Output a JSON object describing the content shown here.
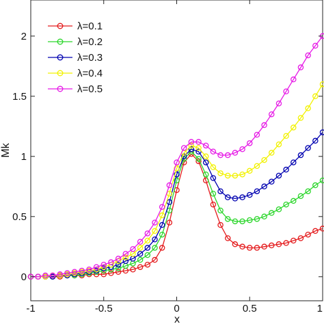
{
  "chart_data": {
    "type": "line",
    "xlabel": "x",
    "ylabel": "Mk",
    "xlim": [
      -1,
      1
    ],
    "ylim": [
      -0.2,
      2.3
    ],
    "xticks": [
      "-1",
      "-0.5",
      "0",
      "0.5",
      "1"
    ],
    "xtick_values": [
      -1,
      -0.5,
      0,
      0.5,
      1
    ],
    "yticks": [
      "0",
      "0.5",
      "1",
      "1.5",
      "2"
    ],
    "ytick_values": [
      0,
      0.5,
      1,
      1.5,
      2
    ],
    "grid": false,
    "legend_position": "top-left",
    "marker": "open-circle",
    "x": [
      -1.0,
      -0.95,
      -0.9,
      -0.85,
      -0.8,
      -0.75,
      -0.7,
      -0.65,
      -0.6,
      -0.55,
      -0.5,
      -0.45,
      -0.4,
      -0.35,
      -0.3,
      -0.25,
      -0.2,
      -0.15,
      -0.1,
      -0.05,
      0.0,
      0.05,
      0.1,
      0.15,
      0.2,
      0.25,
      0.3,
      0.35,
      0.4,
      0.45,
      0.5,
      0.55,
      0.6,
      0.65,
      0.7,
      0.75,
      0.8,
      0.85,
      0.9,
      0.95,
      1.0
    ],
    "series": [
      {
        "name": "λ=0.1",
        "color": "#e41a1c",
        "values": [
          0.0,
          0.0,
          0.0,
          0.0,
          0.0,
          0.01,
          0.01,
          0.01,
          0.02,
          0.02,
          0.02,
          0.03,
          0.04,
          0.05,
          0.06,
          0.08,
          0.1,
          0.14,
          0.24,
          0.45,
          0.72,
          0.95,
          1.02,
          0.96,
          0.8,
          0.6,
          0.43,
          0.32,
          0.27,
          0.25,
          0.24,
          0.24,
          0.25,
          0.26,
          0.27,
          0.28,
          0.3,
          0.32,
          0.35,
          0.38,
          0.4
        ]
      },
      {
        "name": "λ=0.2",
        "color": "#2bd62b",
        "values": [
          0.0,
          0.0,
          0.0,
          0.0,
          0.01,
          0.01,
          0.01,
          0.02,
          0.03,
          0.04,
          0.05,
          0.06,
          0.07,
          0.09,
          0.11,
          0.14,
          0.18,
          0.24,
          0.35,
          0.55,
          0.8,
          0.98,
          1.04,
          0.98,
          0.85,
          0.69,
          0.55,
          0.48,
          0.46,
          0.46,
          0.47,
          0.48,
          0.5,
          0.53,
          0.56,
          0.6,
          0.63,
          0.67,
          0.71,
          0.76,
          0.8
        ]
      },
      {
        "name": "λ=0.3",
        "color": "#0000b0",
        "values": [
          0.0,
          0.0,
          0.0,
          0.0,
          0.01,
          0.01,
          0.02,
          0.03,
          0.04,
          0.05,
          0.07,
          0.08,
          0.1,
          0.13,
          0.15,
          0.19,
          0.24,
          0.31,
          0.43,
          0.62,
          0.85,
          1.0,
          1.06,
          1.04,
          0.95,
          0.82,
          0.71,
          0.66,
          0.65,
          0.66,
          0.68,
          0.71,
          0.75,
          0.79,
          0.84,
          0.89,
          0.95,
          1.01,
          1.07,
          1.13,
          1.2
        ]
      },
      {
        "name": "λ=0.4",
        "color": "#f2f200",
        "values": [
          0.0,
          0.0,
          0.0,
          0.01,
          0.01,
          0.02,
          0.03,
          0.04,
          0.05,
          0.06,
          0.08,
          0.1,
          0.13,
          0.16,
          0.19,
          0.24,
          0.3,
          0.38,
          0.51,
          0.69,
          0.9,
          1.03,
          1.09,
          1.07,
          1.0,
          0.91,
          0.86,
          0.84,
          0.84,
          0.85,
          0.88,
          0.92,
          0.97,
          1.03,
          1.1,
          1.17,
          1.24,
          1.32,
          1.4,
          1.5,
          1.6
        ]
      },
      {
        "name": "λ=0.5",
        "color": "#e61ae6",
        "values": [
          0.0,
          0.0,
          0.01,
          0.01,
          0.02,
          0.03,
          0.04,
          0.05,
          0.06,
          0.08,
          0.1,
          0.12,
          0.15,
          0.19,
          0.23,
          0.29,
          0.36,
          0.45,
          0.58,
          0.76,
          0.95,
          1.07,
          1.12,
          1.12,
          1.09,
          1.04,
          1.01,
          1.01,
          1.03,
          1.06,
          1.11,
          1.18,
          1.26,
          1.35,
          1.44,
          1.54,
          1.64,
          1.74,
          1.84,
          1.92,
          2.0
        ]
      }
    ]
  }
}
